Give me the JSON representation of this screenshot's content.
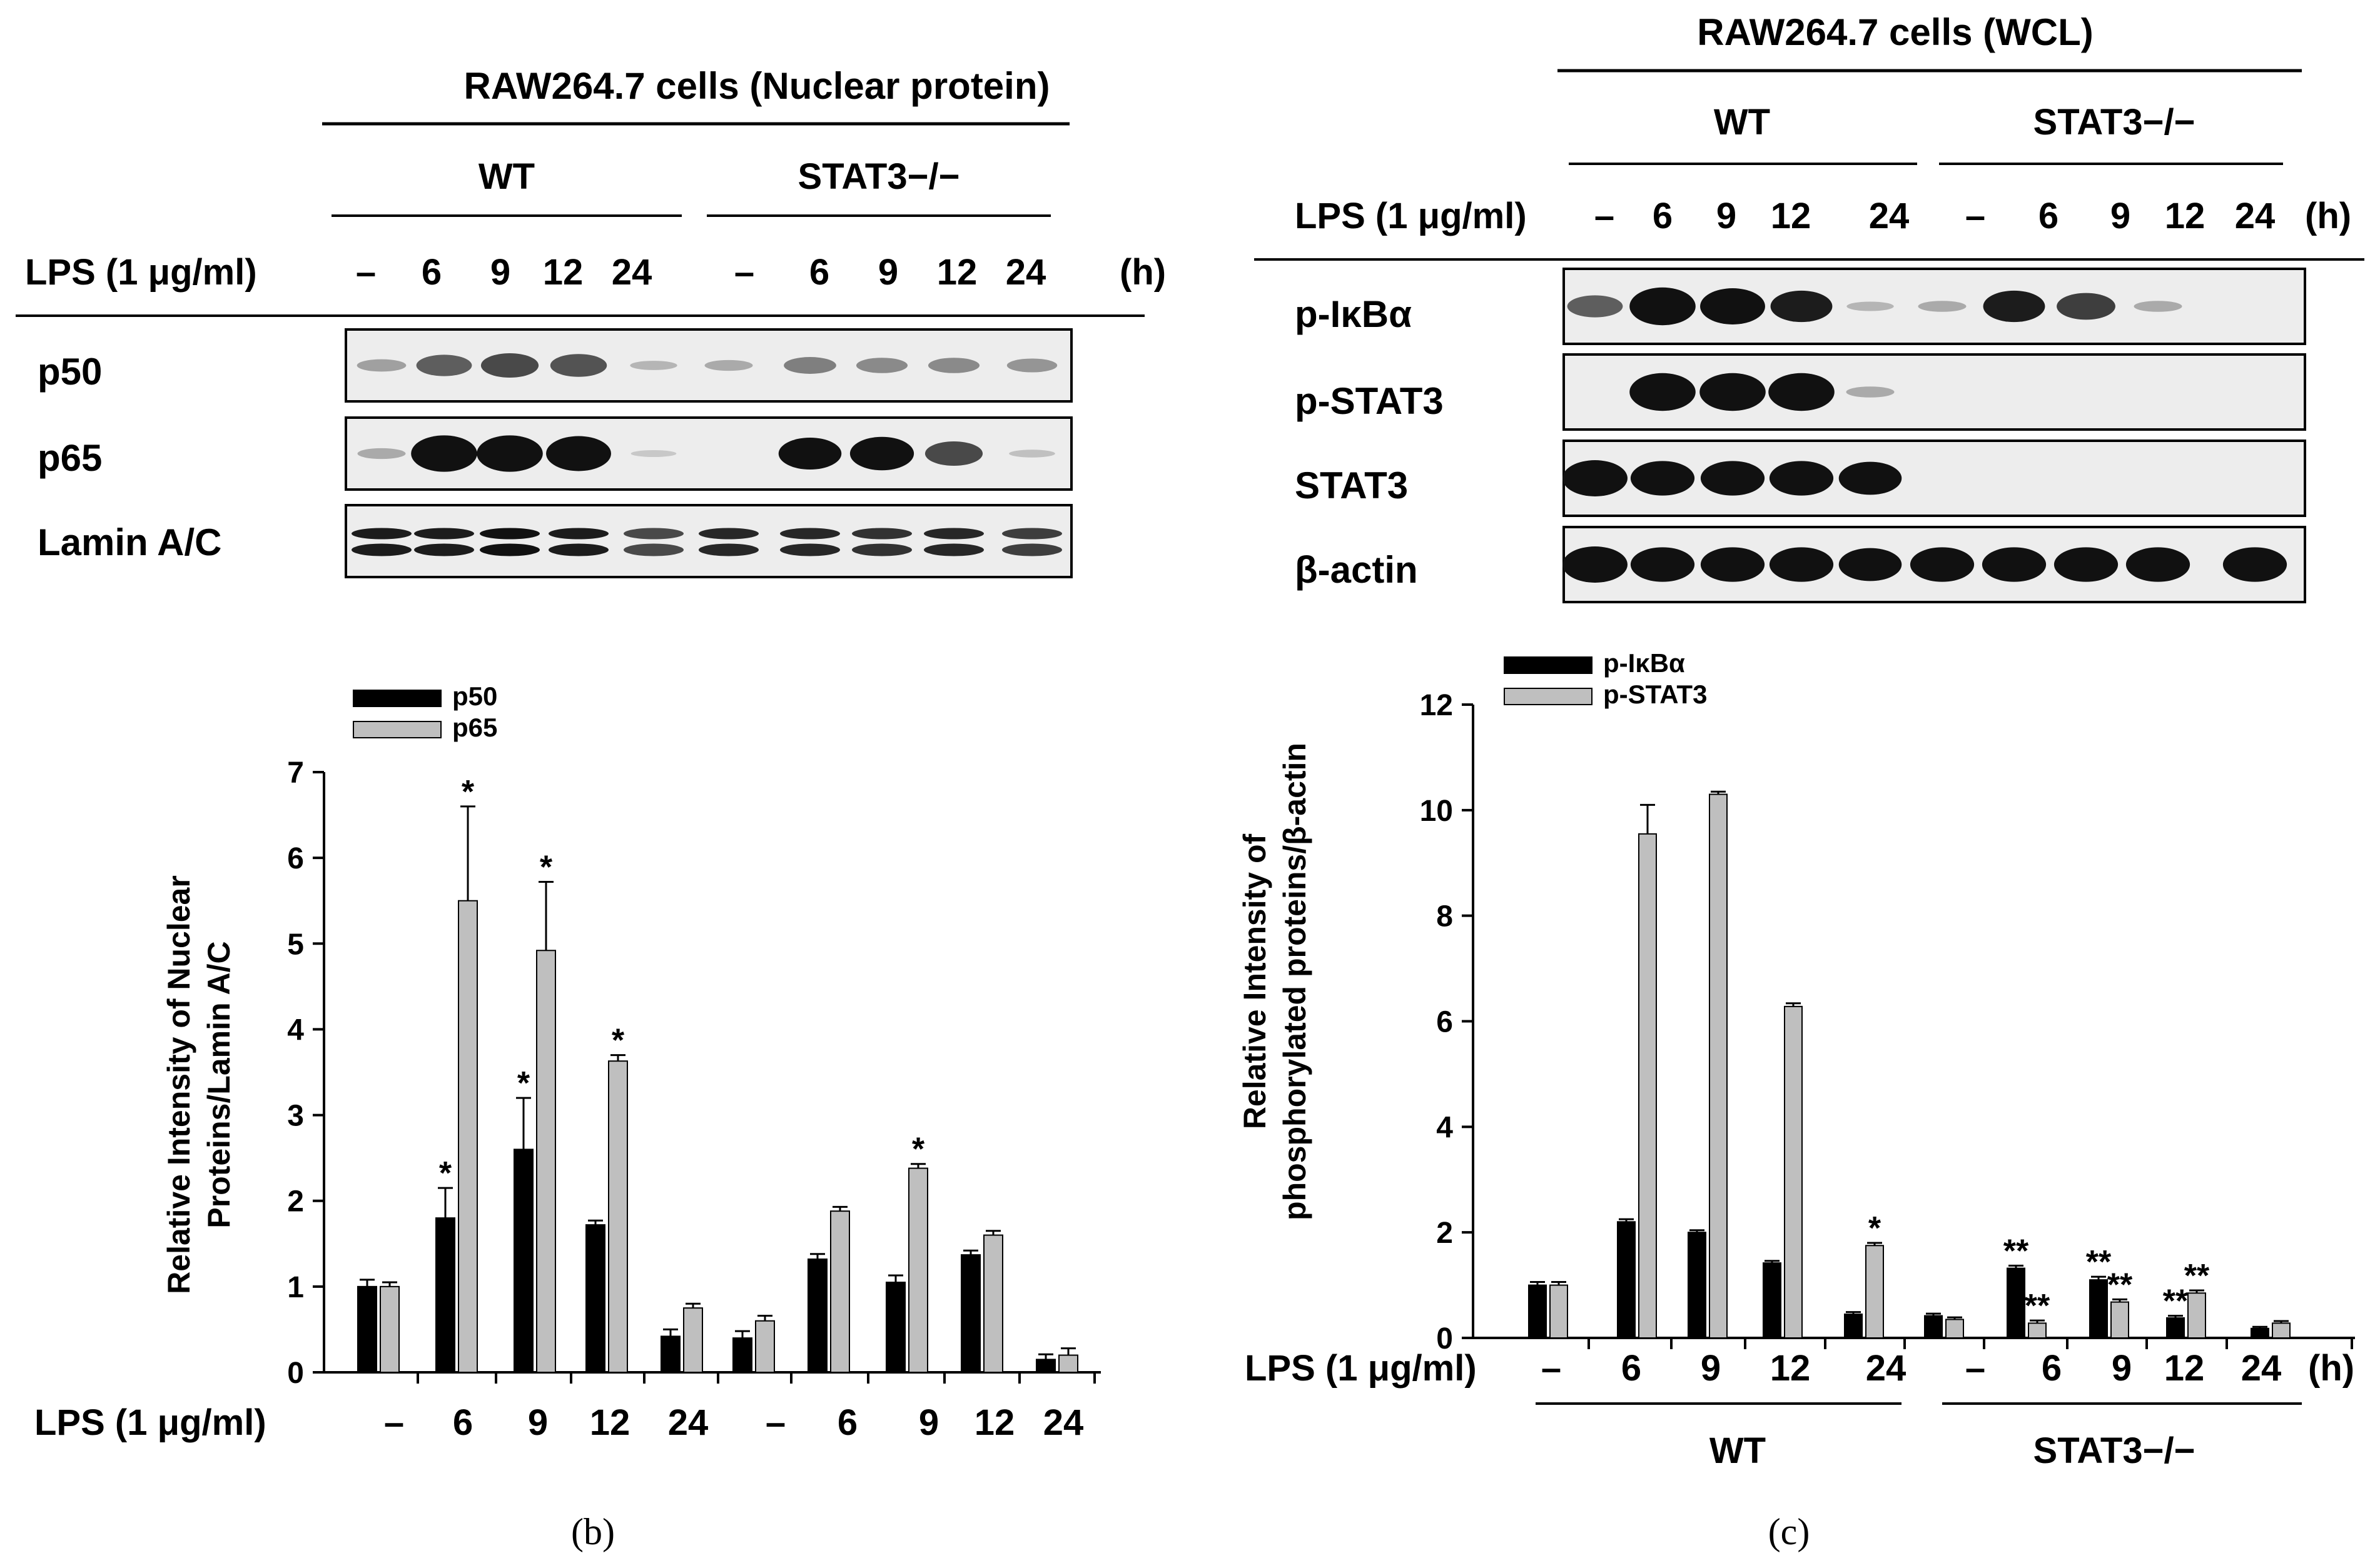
{
  "panel_b": {
    "blot": {
      "header": "RAW264.7 cells (Nuclear protein)",
      "group_wt": "WT",
      "group_ko": "STAT3−/−",
      "treatment_label": "LPS (1 μg/ml)",
      "lanes": [
        "–",
        "6",
        "9",
        "12",
        "24",
        "–",
        "6",
        "9",
        "12",
        "24"
      ],
      "time_unit": "(h)",
      "rows": [
        "p50",
        "p65",
        "Lamin A/C"
      ],
      "band_intensity": {
        "p50": [
          0.2,
          0.5,
          0.6,
          0.55,
          0.1,
          0.15,
          0.35,
          0.3,
          0.3,
          0.25
        ],
        "p65": [
          0.15,
          1.0,
          1.0,
          0.95,
          0.02,
          0.0,
          0.85,
          0.9,
          0.6,
          0.05
        ],
        "Lamin A/C": [
          0.8,
          0.8,
          0.85,
          0.8,
          0.6,
          0.75,
          0.75,
          0.7,
          0.75,
          0.65
        ]
      }
    },
    "chart_data": {
      "type": "bar",
      "ylabel": "Relative Intensity of Nuclear Proteins/Lamin A/C",
      "ylabel_lines": [
        "Relative Intensity of Nuclear",
        "Proteins/Lamin A/C"
      ],
      "xlabel": "LPS (1 μg/ml)",
      "categories": [
        "–",
        "6",
        "9",
        "12",
        "24",
        "–",
        "6",
        "9",
        "12",
        "24"
      ],
      "ylim": [
        0,
        7
      ],
      "yticks": [
        "0",
        "1",
        "2",
        "3",
        "4",
        "5",
        "6",
        "7"
      ],
      "legend_position": "top-left",
      "series": [
        {
          "name": "p50",
          "color": "#000000",
          "values": [
            1.0,
            1.8,
            2.6,
            1.72,
            0.42,
            0.4,
            1.32,
            1.05,
            1.37,
            0.15
          ],
          "errors": [
            0.08,
            0.35,
            0.6,
            0.05,
            0.08,
            0.08,
            0.06,
            0.08,
            0.05,
            0.06
          ],
          "sig": [
            "",
            "*",
            "*",
            "",
            "",
            "",
            "",
            "",
            "",
            ""
          ]
        },
        {
          "name": "p65",
          "color": "#bfbfbf",
          "values": [
            1.0,
            5.5,
            4.92,
            3.63,
            0.75,
            0.6,
            1.88,
            2.38,
            1.6,
            0.2
          ],
          "errors": [
            0.05,
            1.1,
            0.8,
            0.07,
            0.05,
            0.06,
            0.05,
            0.05,
            0.05,
            0.08
          ],
          "sig": [
            "",
            "*",
            "*",
            "*",
            "",
            "",
            "",
            "*",
            "",
            ""
          ]
        }
      ]
    },
    "caption": "(b)"
  },
  "panel_c": {
    "blot": {
      "header": "RAW264.7 cells (WCL)",
      "group_wt": "WT",
      "group_ko": "STAT3−/−",
      "treatment_label": "LPS (1 μg/ml)",
      "lanes": [
        "–",
        "6",
        "9",
        "12",
        "24",
        "–",
        "6",
        "9",
        "12",
        "24"
      ],
      "time_unit": "(h)",
      "rows": [
        "p-IκBα",
        "p-STAT3",
        "STAT3",
        "β-actin"
      ],
      "band_intensity": {
        "p-IkBa": [
          0.5,
          1.0,
          0.95,
          0.8,
          0.1,
          0.15,
          0.8,
          0.65,
          0.15,
          0.0
        ],
        "p-STAT3": [
          0.0,
          1.0,
          1.0,
          1.0,
          0.15,
          0.0,
          0.0,
          0.0,
          0.0,
          0.0
        ],
        "STAT3": [
          0.95,
          0.9,
          0.9,
          0.9,
          0.85,
          0.0,
          0.0,
          0.0,
          0.0,
          0.0
        ],
        "b-actin": [
          0.95,
          0.9,
          0.9,
          0.9,
          0.85,
          0.9,
          0.9,
          0.9,
          0.9,
          0.9
        ]
      }
    },
    "chart_data": {
      "type": "bar",
      "ylabel": "Relative Intensity of phosphorylated proteins/β-actin",
      "ylabel_lines": [
        "Relative Intensity of",
        "phosphorylated proteins/β-actin"
      ],
      "xlabel": "LPS (1 μg/ml)",
      "categories": [
        "–",
        "6",
        "9",
        "12",
        "24",
        "–",
        "6",
        "9",
        "12",
        "24"
      ],
      "time_unit": "(h)",
      "group_labels": [
        "WT",
        "STAT3−/−"
      ],
      "ylim": [
        0,
        12
      ],
      "yticks": [
        "0",
        "2",
        "4",
        "6",
        "8",
        "10",
        "12"
      ],
      "legend_position": "top-left",
      "series": [
        {
          "name": "p-IκBα",
          "color": "#000000",
          "values": [
            1.0,
            2.2,
            2.0,
            1.42,
            0.45,
            0.42,
            1.32,
            1.1,
            0.38,
            0.18
          ],
          "errors": [
            0.06,
            0.05,
            0.04,
            0.04,
            0.04,
            0.04,
            0.05,
            0.06,
            0.04,
            0.03
          ],
          "sig": [
            "",
            "",
            "",
            "",
            "",
            "",
            "**",
            "**",
            "**",
            ""
          ]
        },
        {
          "name": "p-STAT3",
          "color": "#bfbfbf",
          "values": [
            1.0,
            9.55,
            10.3,
            6.28,
            1.75,
            0.35,
            0.28,
            0.68,
            0.85,
            0.28
          ],
          "errors": [
            0.06,
            0.55,
            0.05,
            0.06,
            0.05,
            0.04,
            0.05,
            0.05,
            0.05,
            0.04
          ],
          "sig": [
            "",
            "",
            "",
            "",
            "*",
            "",
            "**",
            "**",
            "**",
            ""
          ]
        }
      ]
    },
    "caption": "(c)"
  }
}
